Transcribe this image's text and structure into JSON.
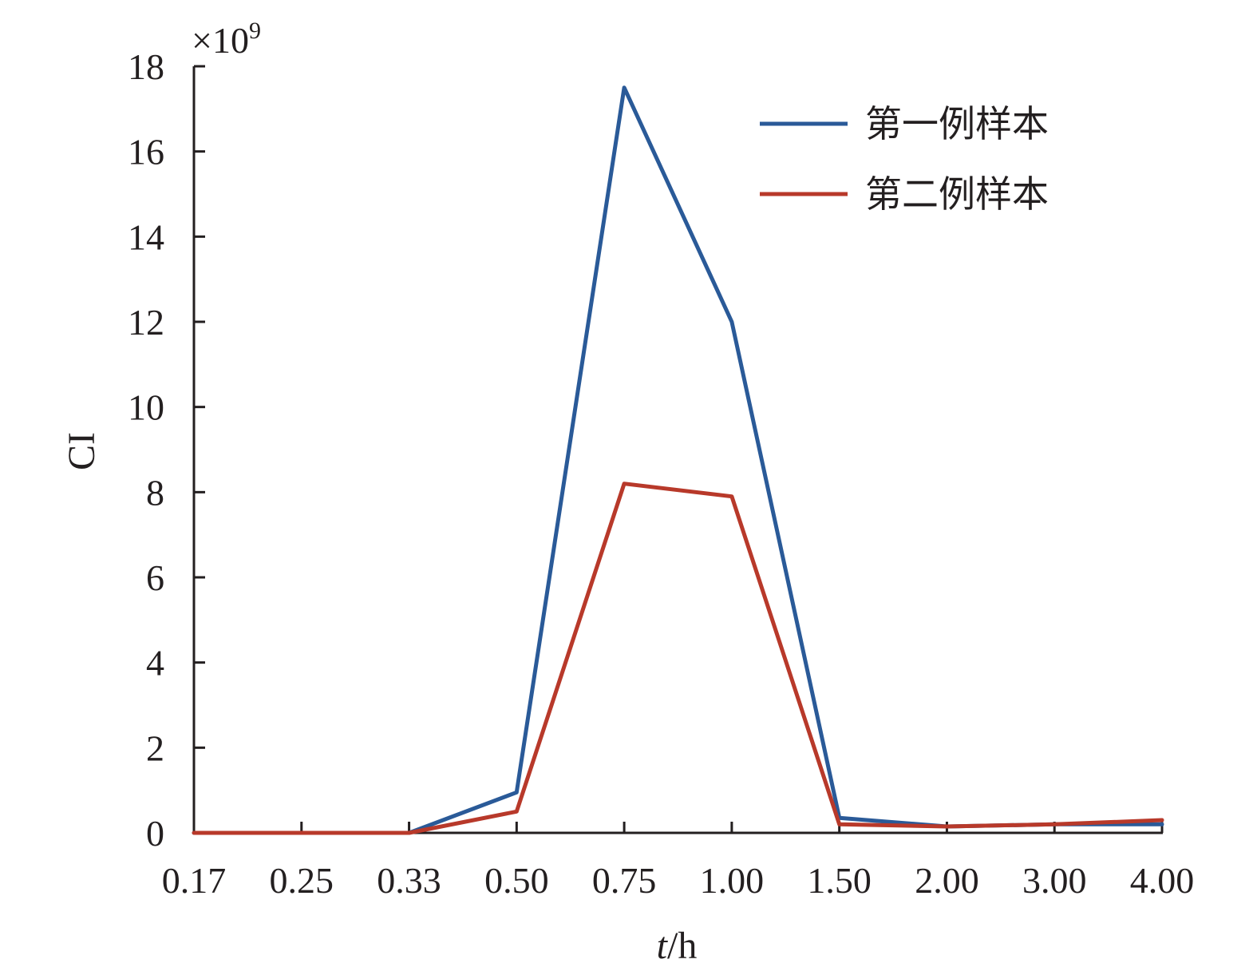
{
  "chart_data": {
    "type": "line",
    "categories": [
      "0.17",
      "0.25",
      "0.33",
      "0.50",
      "0.75",
      "1.00",
      "1.50",
      "2.00",
      "3.00",
      "4.00"
    ],
    "series": [
      {
        "name": "第一例样本",
        "color": "#2a5a98",
        "values": [
          0,
          0,
          0,
          0.95,
          17.5,
          12.0,
          0.35,
          0.15,
          0.2,
          0.2
        ]
      },
      {
        "name": "第二例样本",
        "color": "#b8392a",
        "values": [
          0,
          0,
          0,
          0.5,
          8.2,
          7.9,
          0.2,
          0.15,
          0.2,
          0.3
        ]
      }
    ],
    "ylabel": "CI",
    "y_multiplier": "×10",
    "y_multiplier_exp": "9",
    "xlabel_italic": "t",
    "xlabel_rest": "/h",
    "ylim": [
      0,
      18
    ],
    "yticks": [
      "0",
      "2",
      "4",
      "6",
      "8",
      "10",
      "12",
      "14",
      "16",
      "18"
    ],
    "grid": false,
    "legend_position": "top-right",
    "axis_color": "#231f20"
  }
}
